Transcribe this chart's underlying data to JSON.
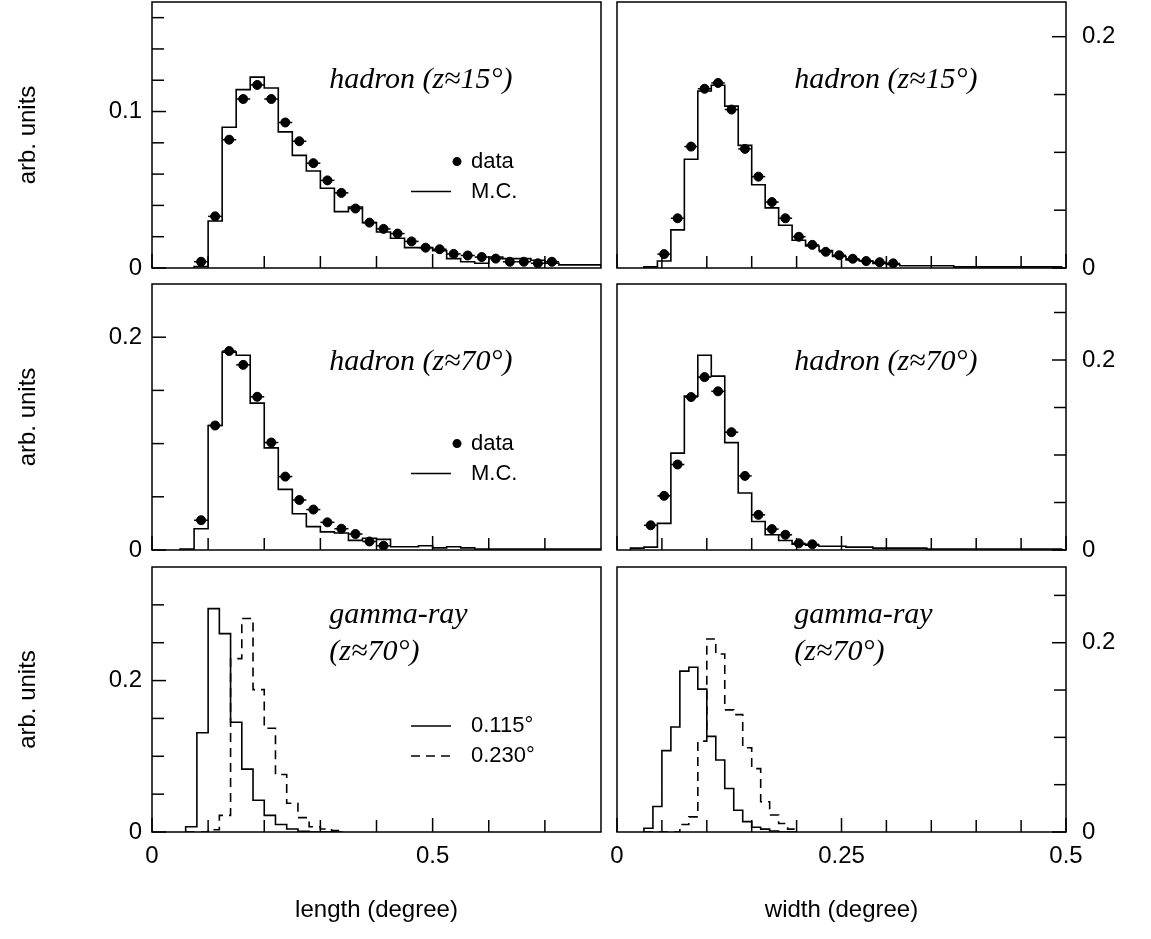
{
  "chart_data": [
    {
      "type": "histogram",
      "ylabel": "arb. units",
      "xlim": [
        0,
        0.8
      ],
      "xticks": [
        0,
        {
          "value": 0.1,
          "label": null
        },
        {
          "value": 0.2,
          "label": null
        },
        {
          "value": 0.3,
          "label": null
        },
        {
          "value": 0.4,
          "label": null
        },
        0.5,
        {
          "value": 0.6,
          "label": null
        },
        {
          "value": 0.7,
          "label": null
        }
      ],
      "ylim": [
        0,
        0.17
      ],
      "yticks": [
        0,
        {
          "value": 0.02,
          "label": null
        },
        {
          "value": 0.04,
          "label": null
        },
        {
          "value": 0.06,
          "label": null
        },
        {
          "value": 0.08,
          "label": null
        },
        0.1,
        {
          "value": 0.12,
          "label": null
        },
        {
          "value": 0.14,
          "label": null
        },
        {
          "value": 0.16,
          "label": null
        }
      ],
      "tick_labels": "y",
      "legend": "right",
      "marker": "circle",
      "annotations": [
        "hadron (z≈15°)"
      ],
      "series": [
        {
          "name": "data",
          "type": "scatter",
          "color": "#000000",
          "x": [
            0.0875,
            0.1125,
            0.1375,
            0.1625,
            0.1875,
            0.2125,
            0.2375,
            0.2625,
            0.2875,
            0.3125,
            0.3375,
            0.3625,
            0.3875,
            0.4125,
            0.4375,
            0.4625,
            0.4875,
            0.5125,
            0.5375,
            0.5625,
            0.5875,
            0.6125,
            0.6375,
            0.6625,
            0.6875,
            0.7125
          ],
          "values": [
            0.004,
            0.033,
            0.082,
            0.108,
            0.117,
            0.108,
            0.093,
            0.081,
            0.067,
            0.056,
            0.048,
            0.038,
            0.029,
            0.025,
            0.022,
            0.017,
            0.013,
            0.012,
            0.009,
            0.008,
            0.007,
            0.006,
            0.004,
            0.004,
            0.003,
            0.004
          ],
          "xerrors": [
            0.0125,
            0.0125,
            0.0125,
            0.0125,
            0.0125,
            0.0125,
            0.0125,
            0.0125,
            0.0125,
            0.0125,
            0.0125,
            0.0125,
            0.0125,
            0.0125,
            0.0125,
            0.0125,
            0.0125,
            0.0125,
            0.0125,
            0.0125,
            0.0125,
            0.0125,
            0.0125,
            0.0125,
            0.0125,
            0.0125
          ]
        },
        {
          "name": "M.C.",
          "type": "histogram",
          "color": "#000000",
          "line_style": "solid",
          "bins": [
            0.075,
            0.1,
            0.125,
            0.15,
            0.175,
            0.2,
            0.225,
            0.25,
            0.275,
            0.3,
            0.325,
            0.35,
            0.375,
            0.4,
            0.425,
            0.45,
            0.475,
            0.5,
            0.525,
            0.55,
            0.575,
            0.6,
            0.625,
            0.65,
            0.675,
            0.7,
            0.725,
            0.75,
            0.775,
            0.8
          ],
          "values": [
            0.001,
            0.03,
            0.09,
            0.114,
            0.122,
            0.115,
            0.087,
            0.072,
            0.062,
            0.051,
            0.036,
            0.039,
            0.029,
            0.023,
            0.019,
            0.013,
            0.013,
            0.011,
            0.006,
            0.004,
            0.003,
            0.007,
            0.006,
            0.006,
            0.005,
            0.003,
            0.002,
            0.002,
            0.002
          ]
        }
      ]
    },
    {
      "type": "histogram",
      "xlim": [
        0,
        0.5
      ],
      "xticks": [
        0,
        {
          "value": 0.05,
          "label": null
        },
        {
          "value": 0.1,
          "label": null
        },
        {
          "value": 0.15,
          "label": null
        },
        {
          "value": 0.2,
          "label": null
        },
        0.25,
        {
          "value": 0.3,
          "label": null
        },
        {
          "value": 0.35,
          "label": null
        },
        {
          "value": 0.4,
          "label": null
        },
        {
          "value": 0.45,
          "label": null
        },
        0.5
      ],
      "ylim": [
        0,
        0.23
      ],
      "yticks": [
        0,
        {
          "value": 0.05,
          "label": null
        },
        {
          "value": 0.1,
          "label": null
        },
        {
          "value": 0.15,
          "label": null
        },
        0.2
      ],
      "tick_labels": "y",
      "marker": "circle",
      "annotations": [
        "hadron (z≈15°)"
      ],
      "series": [
        {
          "type": "scatter",
          "color": "#000000",
          "x": [
            0.0525,
            0.0675,
            0.0825,
            0.0975,
            0.1125,
            0.1275,
            0.1425,
            0.1575,
            0.1725,
            0.1875,
            0.2025,
            0.2175,
            0.2325,
            0.2475,
            0.2625,
            0.2775,
            0.2925,
            0.3075
          ],
          "values": [
            0.012,
            0.043,
            0.105,
            0.155,
            0.16,
            0.137,
            0.103,
            0.079,
            0.057,
            0.043,
            0.027,
            0.02,
            0.014,
            0.011,
            0.008,
            0.006,
            0.005,
            0.004
          ],
          "xerrors": [
            0.0075,
            0.0075,
            0.0075,
            0.0075,
            0.0075,
            0.0075,
            0.0075,
            0.0075,
            0.0075,
            0.0075,
            0.0075,
            0.0075,
            0.0075,
            0.0075,
            0.0075,
            0.0075,
            0.0075,
            0.0075
          ]
        },
        {
          "type": "histogram",
          "color": "#000000",
          "line_style": "solid",
          "bins": [
            0.03,
            0.045,
            0.06,
            0.075,
            0.09,
            0.105,
            0.12,
            0.135,
            0.15,
            0.165,
            0.18,
            0.195,
            0.21,
            0.225,
            0.24,
            0.255,
            0.27,
            0.285,
            0.3,
            0.315,
            0.33,
            0.345,
            0.36,
            0.375,
            0.39,
            0.405,
            0.42,
            0.435,
            0.45,
            0.465,
            0.48,
            0.495
          ],
          "values": [
            0.001,
            0.006,
            0.033,
            0.094,
            0.153,
            0.158,
            0.14,
            0.106,
            0.072,
            0.052,
            0.037,
            0.024,
            0.019,
            0.015,
            0.01,
            0.007,
            0.006,
            0.004,
            0.003,
            0.002,
            0.002,
            0.002,
            0.002,
            0.001,
            0.001,
            0.001,
            0.001,
            0.001,
            0.001,
            0.001,
            0.001
          ]
        }
      ]
    },
    {
      "type": "histogram",
      "ylabel": "arb. units",
      "xlim": [
        0,
        0.8
      ],
      "xticks": [
        0,
        {
          "value": 0.1,
          "label": null
        },
        {
          "value": 0.2,
          "label": null
        },
        {
          "value": 0.3,
          "label": null
        },
        {
          "value": 0.4,
          "label": null
        },
        0.5,
        {
          "value": 0.6,
          "label": null
        },
        {
          "value": 0.7,
          "label": null
        }
      ],
      "ylim": [
        0,
        0.25
      ],
      "yticks": [
        0,
        {
          "value": 0.05,
          "label": null
        },
        {
          "value": 0.1,
          "label": null
        },
        {
          "value": 0.15,
          "label": null
        },
        0.2
      ],
      "tick_labels": "y",
      "legend": "right",
      "marker": "circle",
      "annotations": [
        "hadron (z≈70°)"
      ],
      "series": [
        {
          "name": "data",
          "type": "scatter",
          "color": "#000000",
          "x": [
            0.0875,
            0.1125,
            0.1375,
            0.1625,
            0.1875,
            0.2125,
            0.2375,
            0.2625,
            0.2875,
            0.3125,
            0.3375,
            0.3625,
            0.3875,
            0.4125
          ],
          "values": [
            0.028,
            0.117,
            0.187,
            0.174,
            0.144,
            0.101,
            0.069,
            0.047,
            0.038,
            0.026,
            0.02,
            0.015,
            0.008,
            0.004
          ],
          "xerrors": [
            0.0125,
            0.0125,
            0.0125,
            0.0125,
            0.0125,
            0.0125,
            0.0125,
            0.0125,
            0.0125,
            0.0125,
            0.0125,
            0.0125,
            0.0125,
            0.0125
          ]
        },
        {
          "name": "M.C.",
          "type": "histogram",
          "color": "#000000",
          "line_style": "solid",
          "bins": [
            0.05,
            0.075,
            0.1,
            0.125,
            0.15,
            0.175,
            0.2,
            0.225,
            0.25,
            0.275,
            0.3,
            0.325,
            0.35,
            0.375,
            0.4,
            0.425,
            0.45,
            0.475,
            0.5,
            0.525,
            0.55,
            0.575,
            0.6,
            0.625,
            0.65,
            0.675,
            0.7,
            0.725,
            0.75,
            0.775,
            0.8
          ],
          "values": [
            0.001,
            0.02,
            0.117,
            0.186,
            0.183,
            0.138,
            0.096,
            0.057,
            0.034,
            0.022,
            0.017,
            0.016,
            0.009,
            0.011,
            0.01,
            0.003,
            0.003,
            0.004,
            0.002,
            0.003,
            0.002,
            0.001,
            0.001,
            0.001,
            0.001,
            0.001,
            0.001,
            0.001,
            0.001,
            0.001
          ]
        }
      ]
    },
    {
      "type": "histogram",
      "xlim": [
        0,
        0.5
      ],
      "xticks": [
        0,
        {
          "value": 0.05,
          "label": null
        },
        {
          "value": 0.1,
          "label": null
        },
        {
          "value": 0.15,
          "label": null
        },
        {
          "value": 0.2,
          "label": null
        },
        0.25,
        {
          "value": 0.3,
          "label": null
        },
        {
          "value": 0.35,
          "label": null
        },
        {
          "value": 0.4,
          "label": null
        },
        {
          "value": 0.45,
          "label": null
        },
        0.5
      ],
      "ylim": [
        0,
        0.28
      ],
      "yticks": [
        0,
        {
          "value": 0.05,
          "label": null
        },
        {
          "value": 0.1,
          "label": null
        },
        {
          "value": 0.15,
          "label": null
        },
        0.2,
        {
          "value": 0.25,
          "label": null
        }
      ],
      "tick_labels": "y",
      "marker": "circle",
      "annotations": [
        "hadron (z≈70°)"
      ],
      "series": [
        {
          "type": "scatter",
          "color": "#000000",
          "x": [
            0.0375,
            0.0525,
            0.0675,
            0.0825,
            0.0975,
            0.1125,
            0.1275,
            0.1425,
            0.1575,
            0.1725,
            0.1875,
            0.2025,
            0.2175
          ],
          "values": [
            0.026,
            0.057,
            0.09,
            0.161,
            0.182,
            0.167,
            0.124,
            0.078,
            0.037,
            0.022,
            0.016,
            0.007,
            0.006
          ],
          "xerrors": [
            0.0075,
            0.0075,
            0.0075,
            0.0075,
            0.0075,
            0.0075,
            0.0075,
            0.0075,
            0.0075,
            0.0075,
            0.0075,
            0.0075,
            0.0075
          ]
        },
        {
          "type": "histogram",
          "color": "#000000",
          "line_style": "solid",
          "bins": [
            0.015,
            0.03,
            0.045,
            0.06,
            0.075,
            0.09,
            0.105,
            0.12,
            0.135,
            0.15,
            0.165,
            0.18,
            0.195,
            0.21,
            0.225,
            0.24,
            0.255,
            0.27,
            0.285,
            0.3,
            0.315,
            0.33,
            0.345,
            0.36,
            0.375,
            0.39,
            0.405,
            0.42,
            0.435,
            0.45,
            0.465,
            0.48,
            0.495
          ],
          "values": [
            0.002,
            0.003,
            0.028,
            0.102,
            0.162,
            0.205,
            0.183,
            0.113,
            0.06,
            0.03,
            0.016,
            0.01,
            0.006,
            0.005,
            0.004,
            0.004,
            0.003,
            0.003,
            0.002,
            0.002,
            0.002,
            0.002,
            0.001,
            0.001,
            0.001,
            0.001,
            0.001,
            0.001,
            0.001,
            0.001,
            0.001,
            0.001
          ]
        }
      ]
    },
    {
      "type": "histogram",
      "ylabel": "arb. units",
      "xlabel": "length (degree)",
      "xlim": [
        0,
        0.8
      ],
      "xticks": [
        0,
        {
          "value": 0.1,
          "label": null
        },
        {
          "value": 0.2,
          "label": null
        },
        {
          "value": 0.3,
          "label": null
        },
        {
          "value": 0.4,
          "label": null
        },
        0.5,
        {
          "value": 0.6,
          "label": null
        },
        {
          "value": 0.7,
          "label": null
        }
      ],
      "ylim": [
        0,
        0.35
      ],
      "yticks": [
        0,
        {
          "value": 0.05,
          "label": null
        },
        {
          "value": 0.1,
          "label": null
        },
        {
          "value": 0.15,
          "label": null
        },
        0.2,
        {
          "value": 0.25,
          "label": null
        },
        {
          "value": 0.3,
          "label": null
        }
      ],
      "legend": "right",
      "annotations": [
        "gamma-ray",
        "(z≈70°)"
      ],
      "bins": [
        0.06,
        0.08,
        0.1,
        0.12,
        0.14,
        0.16,
        0.18,
        0.2,
        0.22,
        0.24,
        0.26,
        0.28,
        0.3,
        0.32,
        0.34
      ],
      "series": [
        {
          "name": "0.115°",
          "color": "#000000",
          "line_style": "solid",
          "values": [
            0.007,
            0.131,
            0.295,
            0.262,
            0.145,
            0.083,
            0.042,
            0.022,
            0.01,
            0.004,
            0.001,
            0,
            0,
            0
          ]
        },
        {
          "name": "0.230°",
          "color": "#000000",
          "line_style": "dashed",
          "values": [
            0,
            0,
            0.003,
            0.022,
            0.229,
            0.282,
            0.188,
            0.137,
            0.076,
            0.038,
            0.019,
            0.007,
            0.004,
            0.002
          ]
        }
      ]
    },
    {
      "type": "histogram",
      "xlabel": "width (degree)",
      "xlim": [
        0,
        0.5
      ],
      "xticks": [
        0,
        {
          "value": 0.05,
          "label": null
        },
        {
          "value": 0.1,
          "label": null
        },
        {
          "value": 0.15,
          "label": null
        },
        {
          "value": 0.2,
          "label": null
        },
        0.25,
        {
          "value": 0.3,
          "label": null
        },
        {
          "value": 0.35,
          "label": null
        },
        {
          "value": 0.4,
          "label": null
        },
        {
          "value": 0.45,
          "label": null
        },
        0.5
      ],
      "ylim": [
        0,
        0.28
      ],
      "yticks": [
        0,
        {
          "value": 0.05,
          "label": null
        },
        {
          "value": 0.1,
          "label": null
        },
        {
          "value": 0.15,
          "label": null
        },
        0.2,
        {
          "value": 0.25,
          "label": null
        }
      ],
      "annotations": [
        "gamma-ray",
        "(z≈70°)"
      ],
      "bins": [
        0.03,
        0.04,
        0.05,
        0.06,
        0.07,
        0.08,
        0.09,
        0.1,
        0.11,
        0.12,
        0.13,
        0.14,
        0.15,
        0.16,
        0.17,
        0.18,
        0.19,
        0.2
      ],
      "series": [
        {
          "color": "#000000",
          "line_style": "solid",
          "values": [
            0.004,
            0.027,
            0.086,
            0.111,
            0.17,
            0.174,
            0.151,
            0.101,
            0.076,
            0.046,
            0.023,
            0.011,
            0.005,
            0.003,
            0.001,
            0,
            0
          ]
        },
        {
          "color": "#000000",
          "line_style": "dashed",
          "values": [
            0,
            0,
            0,
            0,
            0.008,
            0.016,
            0.096,
            0.204,
            0.188,
            0.129,
            0.124,
            0.089,
            0.067,
            0.032,
            0.018,
            0.009,
            0.003
          ]
        }
      ]
    }
  ]
}
